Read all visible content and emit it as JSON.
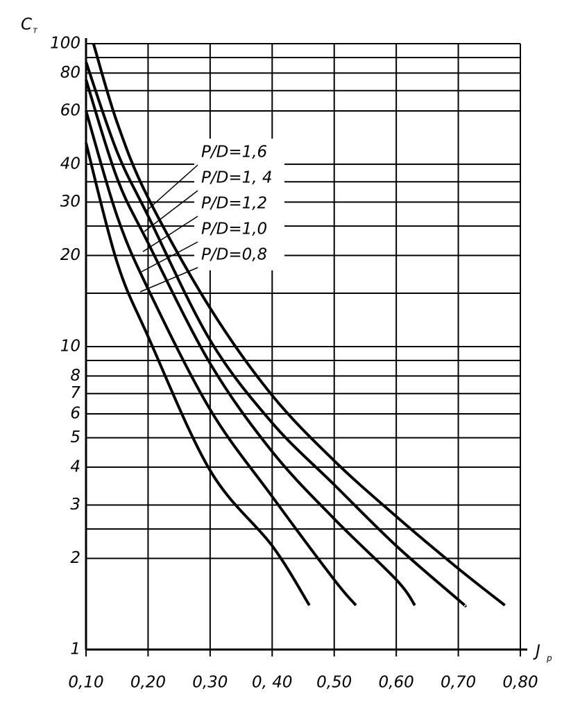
{
  "chart_data": {
    "type": "line",
    "y_label": {
      "main": "C",
      "sub": "т"
    },
    "x_label": {
      "main": "J",
      "sub": "p"
    },
    "log_y": true,
    "grid": true,
    "color": "#000000",
    "xlim": [
      0.1,
      0.8
    ],
    "ylim": [
      1,
      100
    ],
    "xticks": [
      {
        "value": 0.1,
        "label": "0,10"
      },
      {
        "value": 0.2,
        "label": "0,20"
      },
      {
        "value": 0.3,
        "label": "0,30"
      },
      {
        "value": 0.4,
        "label": "0, 40"
      },
      {
        "value": 0.5,
        "label": "0,50"
      },
      {
        "value": 0.6,
        "label": "0,60"
      },
      {
        "value": 0.7,
        "label": "0,70"
      },
      {
        "value": 0.8,
        "label": "0,80"
      }
    ],
    "yticks": [
      1,
      2,
      3,
      4,
      5,
      6,
      7,
      8,
      10,
      20,
      30,
      40,
      60,
      80,
      100
    ],
    "ygrid_minor": [
      2.5,
      9,
      15,
      25,
      35,
      70,
      90
    ],
    "series": [
      {
        "name": "P/D=1,6",
        "x": [
          0.112,
          0.15,
          0.2,
          0.3,
          0.4,
          0.5,
          0.6,
          0.7,
          0.775
        ],
        "values": [
          100,
          55,
          31,
          13.4,
          6.9,
          4.2,
          2.75,
          1.85,
          1.4
        ]
      },
      {
        "name": "P/D=1, 4",
        "x": [
          0.1,
          0.15,
          0.2,
          0.3,
          0.4,
          0.5,
          0.6,
          0.7,
          0.71
        ],
        "values": [
          87,
          44,
          27,
          10.5,
          5.6,
          3.5,
          2.2,
          1.46,
          1.4
        ]
      },
      {
        "name": "P/D=1,2",
        "x": [
          0.1,
          0.15,
          0.2,
          0.3,
          0.4,
          0.5,
          0.6,
          0.63
        ],
        "values": [
          76,
          36,
          22,
          8.8,
          4.5,
          2.7,
          1.7,
          1.4
        ]
      },
      {
        "name": "P/D=1,0",
        "x": [
          0.1,
          0.15,
          0.2,
          0.3,
          0.4,
          0.5,
          0.535
        ],
        "values": [
          60,
          27,
          15.5,
          6.2,
          3.2,
          1.7,
          1.4
        ]
      },
      {
        "name": "P/D=0,8",
        "x": [
          0.1,
          0.15,
          0.2,
          0.3,
          0.4,
          0.46
        ],
        "values": [
          47,
          19,
          10.8,
          3.9,
          2.2,
          1.4
        ]
      }
    ]
  }
}
